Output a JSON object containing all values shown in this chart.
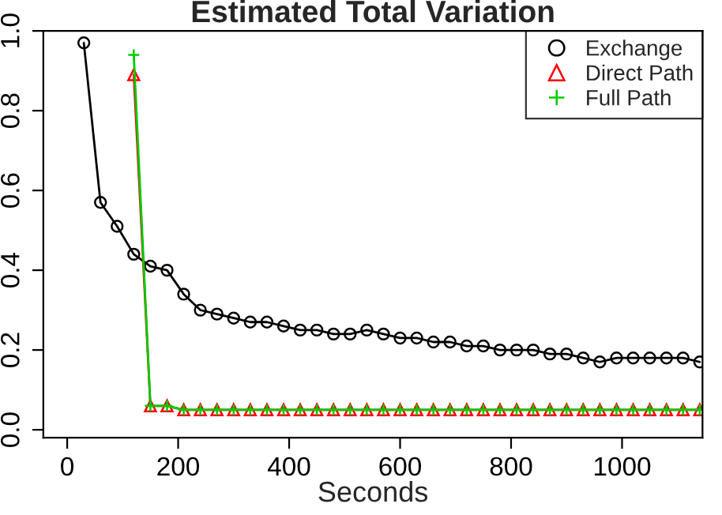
{
  "chart_data": {
    "type": "line",
    "title": "Estimated Total Variation",
    "xlabel": "Seconds",
    "xlim": [
      -43,
      1145
    ],
    "xticks": [
      0,
      200,
      400,
      600,
      800,
      1000
    ],
    "ylim": [
      -0.02,
      1.0
    ],
    "yticks": [
      {
        "value": 0.0,
        "label": "0.0"
      },
      {
        "value": 0.2,
        "label": "0.2"
      },
      {
        "value": 0.4,
        "label": "0.4"
      },
      {
        "value": 0.6,
        "label": "0.6"
      },
      {
        "value": 0.8,
        "label": "0.8"
      },
      {
        "value": 1.0,
        "label": "1.0"
      }
    ],
    "grid": false,
    "legend": "top right",
    "line_style": "solid",
    "series": [
      {
        "name": "Exchange",
        "color": "#000000",
        "marker": "circle",
        "x": [
          30,
          60,
          90,
          120,
          150,
          180,
          210,
          240,
          270,
          300,
          330,
          360,
          390,
          420,
          450,
          480,
          510,
          540,
          570,
          600,
          630,
          660,
          690,
          720,
          750,
          780,
          810,
          840,
          870,
          900,
          930,
          960,
          990,
          1020,
          1050,
          1080,
          1110,
          1140
        ],
        "values": [
          0.97,
          0.57,
          0.51,
          0.44,
          0.41,
          0.4,
          0.34,
          0.3,
          0.29,
          0.28,
          0.27,
          0.27,
          0.26,
          0.25,
          0.25,
          0.24,
          0.24,
          0.25,
          0.24,
          0.23,
          0.23,
          0.22,
          0.22,
          0.21,
          0.21,
          0.2,
          0.2,
          0.2,
          0.19,
          0.19,
          0.18,
          0.17,
          0.18,
          0.18,
          0.18,
          0.18,
          0.18,
          0.17
        ]
      },
      {
        "name": "Direct Path",
        "color": "#ff0000",
        "marker": "triangle",
        "x": [
          120,
          150,
          180,
          210,
          240,
          270,
          300,
          330,
          360,
          390,
          420,
          450,
          480,
          510,
          540,
          570,
          600,
          630,
          660,
          690,
          720,
          750,
          780,
          810,
          840,
          870,
          900,
          930,
          960,
          990,
          1020,
          1050,
          1080,
          1110,
          1140
        ],
        "values": [
          0.89,
          0.06,
          0.06,
          0.05,
          0.05,
          0.05,
          0.05,
          0.05,
          0.05,
          0.05,
          0.05,
          0.05,
          0.05,
          0.05,
          0.05,
          0.05,
          0.05,
          0.05,
          0.05,
          0.05,
          0.05,
          0.05,
          0.05,
          0.05,
          0.05,
          0.05,
          0.05,
          0.05,
          0.05,
          0.05,
          0.05,
          0.05,
          0.05,
          0.05,
          0.05
        ]
      },
      {
        "name": "Full Path",
        "color": "#00cc00",
        "marker": "cross",
        "x": [
          120,
          150,
          180,
          210,
          240,
          270,
          300,
          330,
          360,
          390,
          420,
          450,
          480,
          510,
          540,
          570,
          600,
          630,
          660,
          690,
          720,
          750,
          780,
          810,
          840,
          870,
          900,
          930,
          960,
          990,
          1020,
          1050,
          1080,
          1110,
          1140
        ],
        "values": [
          0.94,
          0.06,
          0.06,
          0.05,
          0.05,
          0.05,
          0.05,
          0.05,
          0.05,
          0.05,
          0.05,
          0.05,
          0.05,
          0.05,
          0.05,
          0.05,
          0.05,
          0.05,
          0.05,
          0.05,
          0.05,
          0.05,
          0.05,
          0.05,
          0.05,
          0.05,
          0.05,
          0.05,
          0.05,
          0.05,
          0.05,
          0.05,
          0.05,
          0.05,
          0.05
        ]
      }
    ]
  }
}
